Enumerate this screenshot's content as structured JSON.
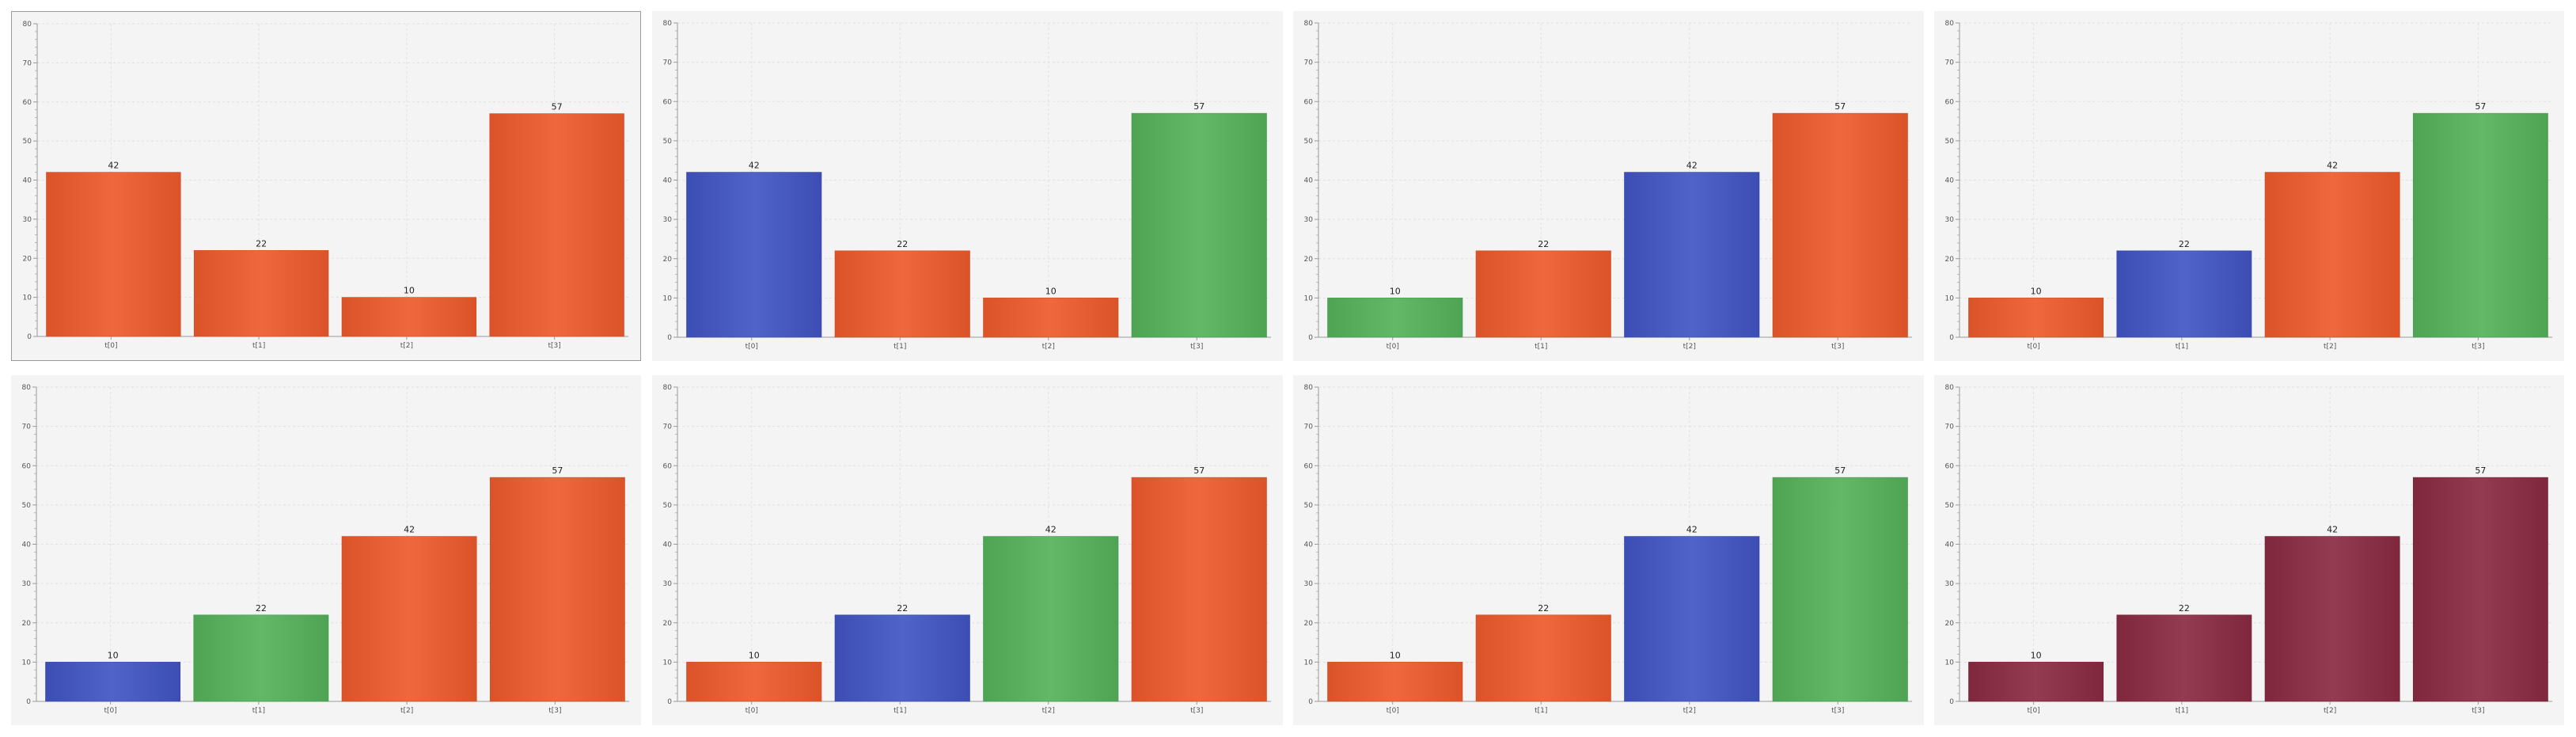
{
  "chart_data": [
    {
      "type": "bar",
      "categories": [
        "t[0]",
        "t[1]",
        "t[2]",
        "t[3]"
      ],
      "values": [
        42,
        22,
        10,
        57
      ],
      "bar_colors": [
        "#ee5a2c",
        "#ee5a2c",
        "#ee5a2c",
        "#ee5a2c"
      ],
      "ylim": [
        0,
        80
      ],
      "yticks": [
        0,
        10,
        20,
        30,
        40,
        50,
        60,
        70,
        80
      ],
      "grid": true
    },
    {
      "type": "bar",
      "categories": [
        "t[0]",
        "t[1]",
        "t[2]",
        "t[3]"
      ],
      "values": [
        42,
        22,
        10,
        57
      ],
      "bar_colors": [
        "#4155c4",
        "#ee5a2c",
        "#ee5a2c",
        "#55b25a"
      ],
      "ylim": [
        0,
        80
      ],
      "yticks": [
        0,
        10,
        20,
        30,
        40,
        50,
        60,
        70,
        80
      ],
      "grid": true
    },
    {
      "type": "bar",
      "categories": [
        "t[0]",
        "t[1]",
        "t[2]",
        "t[3]"
      ],
      "values": [
        10,
        22,
        42,
        57
      ],
      "bar_colors": [
        "#55b25a",
        "#ee5a2c",
        "#4155c4",
        "#ee5a2c"
      ],
      "ylim": [
        0,
        80
      ],
      "yticks": [
        0,
        10,
        20,
        30,
        40,
        50,
        60,
        70,
        80
      ],
      "grid": true
    },
    {
      "type": "bar",
      "categories": [
        "t[0]",
        "t[1]",
        "t[2]",
        "t[3]"
      ],
      "values": [
        10,
        22,
        42,
        57
      ],
      "bar_colors": [
        "#ee5a2c",
        "#4155c4",
        "#ee5a2c",
        "#55b25a"
      ],
      "ylim": [
        0,
        80
      ],
      "yticks": [
        0,
        10,
        20,
        30,
        40,
        50,
        60,
        70,
        80
      ],
      "grid": true
    },
    {
      "type": "bar",
      "categories": [
        "t[0]",
        "t[1]",
        "t[2]",
        "t[3]"
      ],
      "values": [
        10,
        22,
        42,
        57
      ],
      "bar_colors": [
        "#4155c4",
        "#55b25a",
        "#ee5a2c",
        "#ee5a2c"
      ],
      "ylim": [
        0,
        80
      ],
      "yticks": [
        0,
        10,
        20,
        30,
        40,
        50,
        60,
        70,
        80
      ],
      "grid": true
    },
    {
      "type": "bar",
      "categories": [
        "t[0]",
        "t[1]",
        "t[2]",
        "t[3]"
      ],
      "values": [
        10,
        22,
        42,
        57
      ],
      "bar_colors": [
        "#ee5a2c",
        "#4155c4",
        "#55b25a",
        "#ee5a2c"
      ],
      "ylim": [
        0,
        80
      ],
      "yticks": [
        0,
        10,
        20,
        30,
        40,
        50,
        60,
        70,
        80
      ],
      "grid": true
    },
    {
      "type": "bar",
      "categories": [
        "t[0]",
        "t[1]",
        "t[2]",
        "t[3]"
      ],
      "values": [
        10,
        22,
        42,
        57
      ],
      "bar_colors": [
        "#ee5a2c",
        "#ee5a2c",
        "#4155c4",
        "#55b25a"
      ],
      "ylim": [
        0,
        80
      ],
      "yticks": [
        0,
        10,
        20,
        30,
        40,
        50,
        60,
        70,
        80
      ],
      "grid": true
    },
    {
      "type": "bar",
      "categories": [
        "t[0]",
        "t[1]",
        "t[2]",
        "t[3]"
      ],
      "values": [
        10,
        22,
        42,
        57
      ],
      "bar_colors": [
        "#8a2a42",
        "#8a2a42",
        "#8a2a42",
        "#8a2a42"
      ],
      "ylim": [
        0,
        80
      ],
      "yticks": [
        0,
        10,
        20,
        30,
        40,
        50,
        60,
        70,
        80
      ],
      "grid": true
    }
  ]
}
